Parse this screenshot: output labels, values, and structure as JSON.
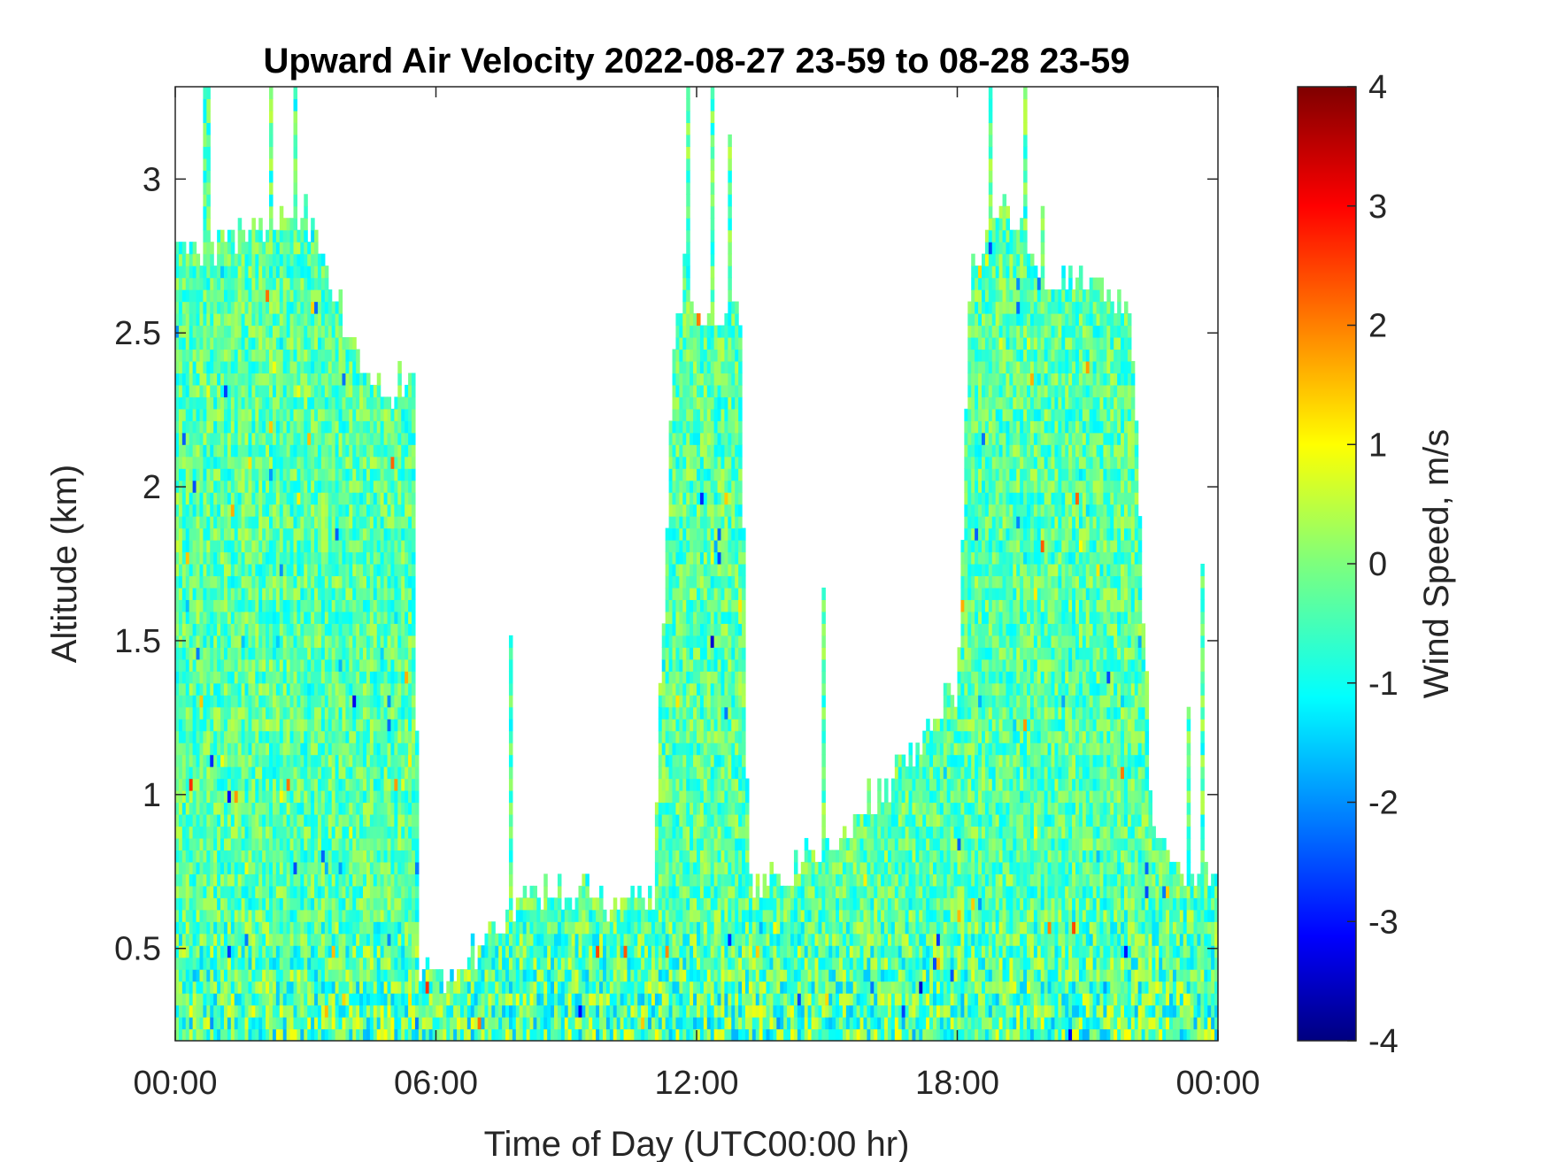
{
  "chart_data": {
    "type": "heatmap",
    "title": "Upward Air Velocity 2022-08-27 23-59 to 08-28 23-59",
    "xlabel": "Time of Day (UTC00:00 hr)",
    "ylabel": "Altitude (km)",
    "colorbar_label": "Wind Speed, m/s",
    "colormap": "jet",
    "x_ticks": [
      "00:00",
      "06:00",
      "12:00",
      "18:00",
      "00:00"
    ],
    "x_range_hours": [
      0,
      24
    ],
    "y_ticks": [
      0.5,
      1,
      1.5,
      2,
      2.5,
      3
    ],
    "y_range_km": [
      0.2,
      3.3
    ],
    "color_ticks": [
      4,
      3,
      2,
      1,
      0,
      -1,
      -2,
      -3,
      -4
    ],
    "color_range": [
      -4,
      4
    ],
    "grid": false,
    "echo_top_km": [
      [
        0.0,
        2.8
      ],
      [
        0.5,
        2.75
      ],
      [
        1.0,
        2.8
      ],
      [
        2.0,
        2.85
      ],
      [
        3.0,
        2.9
      ],
      [
        4.0,
        2.5
      ],
      [
        4.5,
        2.3
      ],
      [
        5.5,
        2.35
      ],
      [
        5.6,
        0.45
      ],
      [
        6.0,
        0.38
      ],
      [
        7.0,
        0.5
      ],
      [
        8.0,
        0.65
      ],
      [
        9.0,
        0.7
      ],
      [
        10.0,
        0.65
      ],
      [
        11.0,
        0.7
      ],
      [
        11.5,
        2.55
      ],
      [
        13.0,
        2.55
      ],
      [
        13.2,
        0.7
      ],
      [
        14.0,
        0.72
      ],
      [
        15.0,
        0.85
      ],
      [
        16.0,
        0.95
      ],
      [
        17.0,
        1.15
      ],
      [
        18.0,
        1.35
      ],
      [
        18.3,
        2.7
      ],
      [
        19.0,
        2.9
      ],
      [
        20.0,
        2.7
      ],
      [
        21.0,
        2.65
      ],
      [
        22.0,
        2.6
      ],
      [
        22.5,
        0.85
      ],
      [
        23.0,
        0.75
      ],
      [
        24.0,
        0.7
      ]
    ],
    "mean_vertical_velocity_ms": -0.3
  }
}
